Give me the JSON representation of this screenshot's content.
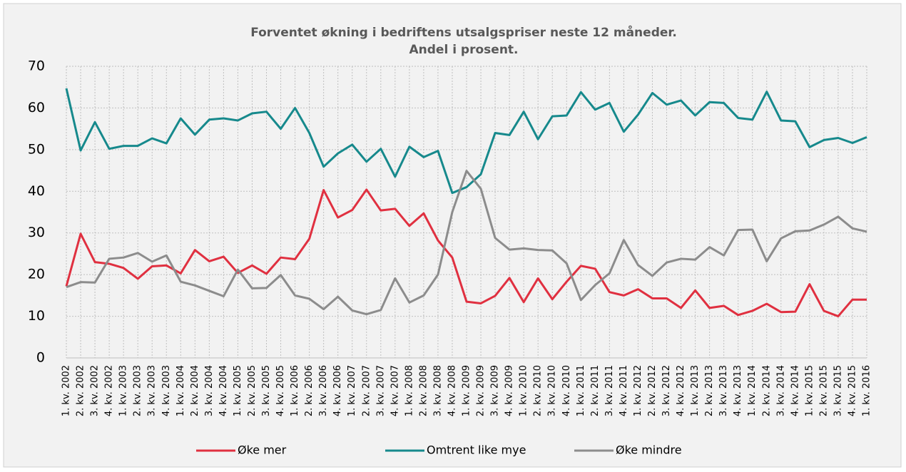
{
  "chart_data": {
    "type": "line",
    "title": [
      "Forventet økning i bedriftens utsalgspriser neste 12 måneder.",
      "Andel i prosent."
    ],
    "categories": [
      "1. kv. 2002",
      "2. kv. 2002",
      "3. kv. 2002",
      "4. kv. 2002",
      "1. kv. 2003",
      "2. kv. 2003",
      "3. kv. 2003",
      "4. kv. 2003",
      "1. kv. 2004",
      "2. kv. 2004",
      "3. kv. 2004",
      "4. kv. 2004",
      "1. kv. 2005",
      "2. kv. 2005",
      "3. kv. 2005",
      "4. kv. 2005",
      "1. kv. 2006",
      "2. kv. 2006",
      "3. kv. 2006",
      "4. kv. 2006",
      "1. kv. 2007",
      "2. kv. 2007",
      "3. kv. 2007",
      "4. kv. 2007",
      "1. kv. 2008",
      "2. kv. 2008",
      "3. kv. 2008",
      "4. kv. 2008",
      "1. kv. 2009",
      "2. kv. 2009",
      "3. kv. 2009",
      "4. kv. 2009",
      "1. kv. 2010",
      "2. kv. 2010",
      "3. kv. 2010",
      "4. kv. 2010",
      "1. kv. 2011",
      "2. kv. 2011",
      "3. kv. 2011",
      "4. kv. 2011",
      "1. kv. 2012",
      "2. kv. 2012",
      "3. kv. 2012",
      "4. kv. 2012",
      "1. kv. 2013",
      "2. kv. 2013",
      "3. kv. 2013",
      "4. kv. 2013",
      "1. kv. 2014",
      "2. kv. 2014",
      "3. kv. 2014",
      "4. kv. 2014",
      "1. kv. 2015",
      "2. kv. 2015",
      "3. kv. 2015",
      "4. kv. 2015",
      "1. kv. 2016"
    ],
    "series": [
      {
        "name": "Øke mer",
        "color": "#e03040",
        "values": [
          17.2,
          29.8,
          23,
          22.6,
          21.6,
          19,
          22,
          22.2,
          20.3,
          25.9,
          23.2,
          24.3,
          20.4,
          22.2,
          20.2,
          24.1,
          23.7,
          28.6,
          40.3,
          33.7,
          35.5,
          40.4,
          35.4,
          35.8,
          31.7,
          34.7,
          28.2,
          24.1,
          13.5,
          13.1,
          14.9,
          19.2,
          13.4,
          19.1,
          14.1,
          18.3,
          22.1,
          21.4,
          15.8,
          15,
          16.5,
          14.3,
          14.3,
          12,
          16.2,
          12,
          12.5,
          10.3,
          11.3,
          13,
          11,
          11.1,
          17.7,
          11.3,
          10,
          14,
          14
        ]
      },
      {
        "name": "Omtrent like mye",
        "color": "#16898c",
        "values": [
          64.7,
          49.8,
          56.6,
          50.2,
          50.9,
          50.9,
          52.7,
          51.5,
          57.5,
          53.6,
          57.2,
          57.5,
          57,
          58.7,
          59.1,
          55,
          60,
          54,
          45.9,
          49.1,
          51.2,
          47.1,
          50.2,
          43.5,
          50.7,
          48.2,
          49.7,
          39.6,
          41,
          44.1,
          54,
          53.5,
          59.1,
          52.5,
          58,
          58.2,
          63.8,
          59.6,
          61.2,
          54.3,
          58.4,
          63.6,
          60.8,
          61.8,
          58.2,
          61.4,
          61.2,
          57.6,
          57.2,
          63.9,
          57,
          56.8,
          50.6,
          52.3,
          52.8,
          51.6,
          53
        ]
      },
      {
        "name": "Øke mindre",
        "color": "#8c8c8c",
        "values": [
          17,
          18.2,
          18.1,
          23.8,
          24.1,
          25.2,
          23.1,
          24.6,
          18.3,
          17.4,
          16.1,
          14.8,
          21.2,
          16.7,
          16.8,
          19.9,
          15,
          14.2,
          11.7,
          14.7,
          11.4,
          10.5,
          11.5,
          19.1,
          13.3,
          15,
          20,
          35,
          44.9,
          40.6,
          28.8,
          26,
          26.3,
          25.9,
          25.8,
          22.7,
          13.9,
          17.5,
          20.3,
          28.3,
          22.3,
          19.7,
          22.9,
          23.8,
          23.6,
          26.6,
          24.6,
          30.7,
          30.8,
          23.2,
          28.7,
          30.4,
          30.6,
          32,
          33.9,
          31.1,
          30.3
        ]
      }
    ],
    "ylim": [
      0,
      70
    ],
    "yticks": [
      0,
      10,
      20,
      30,
      40,
      50,
      60,
      70
    ],
    "grid": true,
    "legend": "bottom"
  }
}
